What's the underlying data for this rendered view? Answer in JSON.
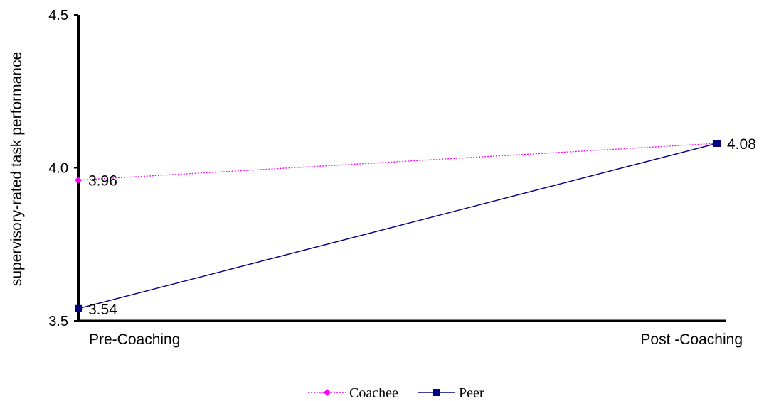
{
  "chart_data": {
    "type": "line",
    "title": "",
    "xlabel": "",
    "ylabel": "supervisory-rated task performance",
    "categories": [
      "Pre-Coaching",
      "Post -Coaching"
    ],
    "ylim": [
      3.5,
      4.5
    ],
    "yticks": [
      "3.5",
      "4.0",
      "4.5"
    ],
    "grid": false,
    "legend_position": "bottom-center",
    "series": [
      {
        "name": "Coachee",
        "values": [
          3.96,
          4.08
        ],
        "point_labels": [
          "3.96",
          ""
        ],
        "color": "#ff00ff",
        "line_style": "dotted",
        "marker": "diamond"
      },
      {
        "name": "Peer",
        "values": [
          3.54,
          4.08
        ],
        "point_labels": [
          "3.54",
          "4.08"
        ],
        "color": "#000080",
        "line_style": "solid",
        "marker": "square"
      }
    ]
  }
}
